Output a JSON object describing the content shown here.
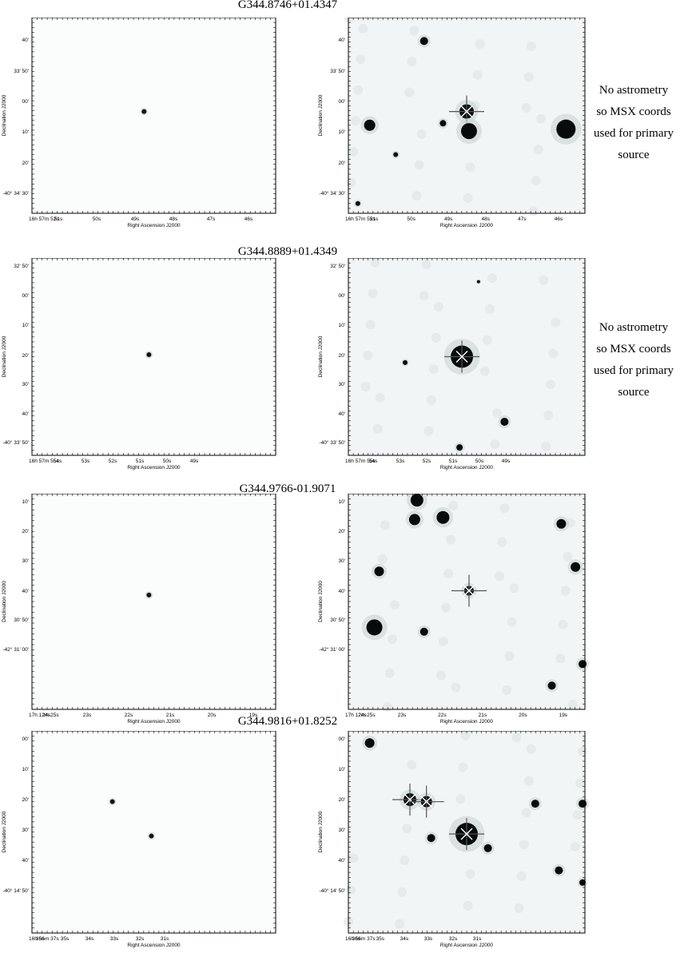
{
  "axis_labels": {
    "x": "Right Ascension J2000",
    "y": "Declination J2000"
  },
  "rows": [
    {
      "title": "G344.8746+01.4347",
      "note_lines": [
        "No astrometry",
        "so MSX coords",
        "used for primary",
        "source"
      ],
      "ra_ticks": [
        "16h 57m 52s",
        "51s",
        "50s",
        "49s",
        "48s",
        "47s",
        "46s"
      ],
      "dec_ticks": [
        "40'",
        "33' 50'",
        "00'",
        "10'",
        "20'",
        "-40° 34' 30'"
      ]
    },
    {
      "title": "G344.8889+01.4349",
      "note_lines": [
        "No astrometry",
        "so MSX coords",
        "used for primary",
        "source"
      ],
      "ra_ticks": [
        "16h 57m 55s",
        "54s",
        "53s",
        "52s",
        "51s",
        "50s",
        "49s"
      ],
      "dec_ticks": [
        "32' 50'",
        "00'",
        "10'",
        "20'",
        "30'",
        "40'",
        "-40° 33' 50'"
      ]
    },
    {
      "title": "G344.9766-01.9071",
      "note_lines": [],
      "ra_ticks": [
        "17h 12m 25s",
        "24s",
        "23s",
        "22s",
        "21s",
        "20s",
        "19s"
      ],
      "dec_ticks": [
        "10'",
        "20'",
        "30'",
        "40'",
        "30' 50'",
        "-42° 31' 00'"
      ]
    },
    {
      "title": "G344.9816+01.8252",
      "note_lines": [],
      "ra_ticks": [
        "16h 56m 37s",
        "36s",
        "35s",
        "34s",
        "33s",
        "32s",
        "31s"
      ],
      "dec_ticks": [
        "00'",
        "10'",
        "20'",
        "30'",
        "40'",
        "-40° 14' 50'"
      ]
    }
  ]
}
